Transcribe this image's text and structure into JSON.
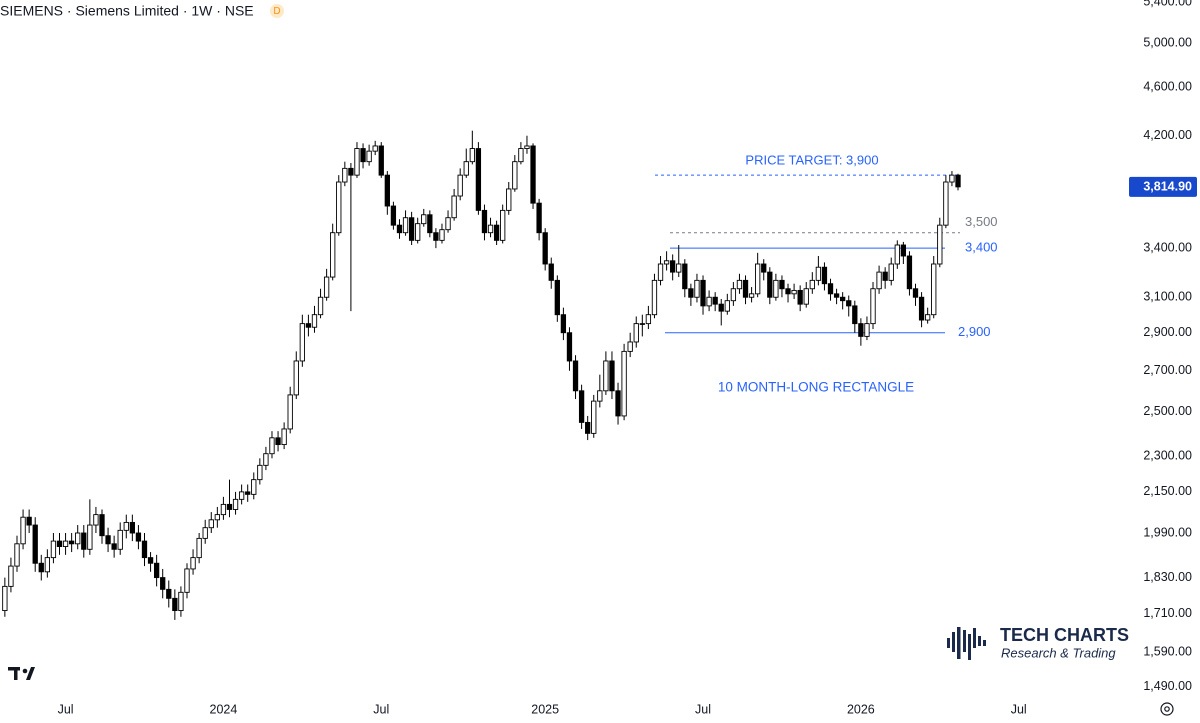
{
  "chart_data": {
    "type": "candlestick",
    "title": "SIEMENS · Siemens Limited · 1W · NSE",
    "badge": "D",
    "log_scale": true,
    "ylim": [
      1462,
      5421
    ],
    "yticks": [
      {
        "value": 1490,
        "label": "1,490.00"
      },
      {
        "value": 1590,
        "label": "1,590.00"
      },
      {
        "value": 1710,
        "label": "1,710.00"
      },
      {
        "value": 1830,
        "label": "1,830.00"
      },
      {
        "value": 1990,
        "label": "1,990.00"
      },
      {
        "value": 2150,
        "label": "2,150.00"
      },
      {
        "value": 2300,
        "label": "2,300.00"
      },
      {
        "value": 2500,
        "label": "2,500.00"
      },
      {
        "value": 2700,
        "label": "2,700.00"
      },
      {
        "value": 2900,
        "label": "2,900.00"
      },
      {
        "value": 3100,
        "label": "3,100.00"
      },
      {
        "value": 3400,
        "label": "3,400.00"
      },
      {
        "value": 4200,
        "label": "4,200.00"
      },
      {
        "value": 4600,
        "label": "4,600.00"
      },
      {
        "value": 5000,
        "label": "5,000.00"
      },
      {
        "value": 5400,
        "label": "5,400.00"
      }
    ],
    "xlim": [
      -0.8,
      185
    ],
    "xticks": [
      {
        "value": 10,
        "label": "Jul"
      },
      {
        "value": 36,
        "label": "2024"
      },
      {
        "value": 62,
        "label": "Jul"
      },
      {
        "value": 89,
        "label": "2025"
      },
      {
        "value": 115,
        "label": "Jul"
      },
      {
        "value": 141,
        "label": "2026"
      },
      {
        "value": 167,
        "label": "Jul"
      }
    ],
    "up_color": "#ffffff",
    "down_color": "#000000",
    "open": [
      1720,
      1800,
      1870,
      1950,
      2050,
      2020,
      1880,
      1850,
      1900,
      1960,
      1940,
      1960,
      1950,
      1990,
      1930,
      2020,
      2060,
      1980,
      1950,
      1930,
      2000,
      2030,
      1990,
      1960,
      1900,
      1880,
      1830,
      1790,
      1760,
      1720,
      1780,
      1860,
      1900,
      1970,
      2010,
      2040,
      2060,
      2100,
      2080,
      2120,
      2150,
      2140,
      2200,
      2260,
      2310,
      2380,
      2350,
      2420,
      2580,
      2750,
      2950,
      2930,
      3000,
      3100,
      3220,
      3500,
      3850,
      3950,
      3900,
      4100,
      4000,
      4080,
      4120,
      3900,
      3680,
      3550,
      3500,
      3600,
      3450,
      3560,
      3620,
      3500,
      3450,
      3520,
      3600,
      3750,
      3900,
      4000,
      4100,
      3650,
      3500,
      3550,
      3450,
      3650,
      3800,
      4000,
      4100,
      4120,
      3700,
      3500,
      3300,
      3200,
      3000,
      2900,
      2750,
      2600,
      2450,
      2400,
      2550,
      2600,
      2750,
      2600,
      2480,
      2800,
      2850,
      2950,
      2950,
      3000,
      3200,
      3300,
      3320,
      3250,
      3300,
      3150,
      3100,
      3200,
      3050,
      3100,
      3060,
      3020,
      3080,
      3150,
      3200,
      3100,
      3120,
      3300,
      3250,
      3100,
      3200,
      3150,
      3120,
      3140,
      3060,
      3150,
      3200,
      3280,
      3180,
      3120,
      3100,
      3080,
      3050,
      2950,
      2880,
      2950,
      3150,
      3250,
      3200,
      3300,
      3420,
      3350,
      3150,
      3100,
      2970,
      3000,
      3300,
      3550,
      3850,
      3900
    ],
    "high": [
      1830,
      1900,
      1980,
      2080,
      2080,
      2050,
      1910,
      1930,
      1990,
      1990,
      1990,
      1990,
      2020,
      2020,
      2120,
      2090,
      2080,
      2010,
      1980,
      2030,
      2060,
      2060,
      2020,
      1990,
      1920,
      1910,
      1860,
      1820,
      1790,
      1800,
      1880,
      1930,
      1990,
      2040,
      2070,
      2090,
      2130,
      2200,
      2150,
      2180,
      2180,
      2230,
      2290,
      2340,
      2410,
      2410,
      2450,
      2620,
      2800,
      3000,
      3000,
      3050,
      3150,
      3270,
      3560,
      3900,
      4000,
      3990,
      4150,
      4140,
      4130,
      4160,
      4150,
      3930,
      3710,
      3590,
      3650,
      3640,
      3600,
      3660,
      3650,
      3530,
      3560,
      3650,
      3800,
      3950,
      4100,
      4240,
      4150,
      3690,
      3600,
      3580,
      3690,
      3850,
      4050,
      4150,
      4200,
      4140,
      3730,
      3530,
      3340,
      3230,
      3040,
      2930,
      2780,
      2630,
      2480,
      2580,
      2680,
      2800,
      2800,
      2640,
      2840,
      2900,
      2990,
      3000,
      3050,
      3240,
      3350,
      3380,
      3360,
      3420,
      3330,
      3180,
      3240,
      3230,
      3140,
      3130,
      3090,
      3120,
      3190,
      3240,
      3230,
      3160,
      3370,
      3330,
      3280,
      3240,
      3230,
      3180,
      3180,
      3170,
      3190,
      3250,
      3350,
      3310,
      3210,
      3150,
      3130,
      3110,
      3080,
      2980,
      2990,
      3190,
      3290,
      3280,
      3340,
      3450,
      3440,
      3380,
      3180,
      3130,
      3040,
      3350,
      3600,
      3900,
      3930,
      3910
    ],
    "low": [
      1700,
      1780,
      1850,
      1930,
      1990,
      1850,
      1820,
      1830,
      1880,
      1910,
      1910,
      1920,
      1930,
      1900,
      1910,
      1990,
      1950,
      1920,
      1900,
      1910,
      1970,
      1960,
      1930,
      1870,
      1850,
      1800,
      1760,
      1730,
      1690,
      1700,
      1760,
      1840,
      1880,
      1950,
      1990,
      2010,
      2040,
      2050,
      2060,
      2100,
      2110,
      2120,
      2180,
      2240,
      2290,
      2320,
      2330,
      2400,
      2560,
      2720,
      2880,
      2900,
      2980,
      3080,
      3200,
      3480,
      3820,
      3020,
      3880,
      3950,
      3970,
      4050,
      3880,
      3620,
      3520,
      3460,
      3480,
      3420,
      3430,
      3540,
      3470,
      3400,
      3430,
      3500,
      3580,
      3720,
      3880,
      3980,
      3620,
      3450,
      3470,
      3420,
      3430,
      3620,
      3780,
      3980,
      4060,
      3660,
      3450,
      3260,
      3150,
      2960,
      2860,
      2700,
      2560,
      2420,
      2370,
      2380,
      2520,
      2580,
      2560,
      2440,
      2460,
      2770,
      2820,
      2880,
      2920,
      2980,
      3170,
      3260,
      3200,
      3220,
      3100,
      3050,
      3070,
      3000,
      3020,
      3020,
      2940,
      3000,
      3050,
      3120,
      3060,
      3070,
      3100,
      3200,
      3060,
      3080,
      3100,
      3070,
      3090,
      3020,
      3040,
      3120,
      3170,
      3140,
      3080,
      3060,
      3030,
      2990,
      2900,
      2830,
      2860,
      2920,
      3120,
      3150,
      3170,
      3270,
      3300,
      3110,
      3050,
      2930,
      2950,
      2980,
      3280,
      3530,
      3820,
      3790
    ],
    "close": [
      1800,
      1870,
      1950,
      2050,
      2020,
      1880,
      1850,
      1900,
      1960,
      1940,
      1960,
      1950,
      1990,
      1930,
      2020,
      2060,
      1980,
      1950,
      1930,
      2000,
      2030,
      1990,
      1960,
      1900,
      1880,
      1830,
      1790,
      1760,
      1720,
      1780,
      1860,
      1900,
      1970,
      2010,
      2040,
      2060,
      2100,
      2080,
      2120,
      2150,
      2140,
      2200,
      2260,
      2310,
      2380,
      2350,
      2420,
      2580,
      2750,
      2950,
      2930,
      3000,
      3100,
      3220,
      3500,
      3850,
      3950,
      3900,
      4100,
      4000,
      4080,
      4120,
      3900,
      3680,
      3550,
      3500,
      3600,
      3450,
      3560,
      3620,
      3500,
      3450,
      3520,
      3600,
      3750,
      3900,
      4000,
      4100,
      3650,
      3500,
      3550,
      3450,
      3650,
      3800,
      4000,
      4100,
      4120,
      3700,
      3500,
      3300,
      3200,
      3000,
      2900,
      2750,
      2600,
      2450,
      2400,
      2550,
      2600,
      2750,
      2600,
      2480,
      2800,
      2850,
      2950,
      2950,
      3000,
      3200,
      3300,
      3320,
      3250,
      3300,
      3150,
      3100,
      3200,
      3050,
      3100,
      3060,
      3020,
      3080,
      3150,
      3200,
      3100,
      3120,
      3300,
      3250,
      3100,
      3200,
      3150,
      3120,
      3140,
      3060,
      3150,
      3200,
      3280,
      3180,
      3120,
      3100,
      3080,
      3050,
      2950,
      2880,
      2950,
      3150,
      3250,
      3200,
      3300,
      3420,
      3350,
      3150,
      3100,
      2970,
      3000,
      3300,
      3550,
      3850,
      3900,
      3814.9
    ],
    "last_price": {
      "value": 3814.9,
      "label": "3,814.90",
      "color": "#1848cc"
    },
    "levels": [
      {
        "value": 3900,
        "label": "PRICE TARGET: 3,900",
        "style": "dashed",
        "color": "#2962ff"
      },
      {
        "value": 3500,
        "label": "3,500",
        "style": "dashed",
        "color": "#787b86"
      },
      {
        "value": 3400,
        "label": "3,400",
        "style": "solid",
        "color": "#2962ff"
      },
      {
        "value": 2900,
        "label": "2,900",
        "style": "solid",
        "color": "#2962ff"
      }
    ],
    "annotation": "10 MONTH-LONG RECTANGLE",
    "annotation_color": "#2962ff",
    "logo_title": "TECH CHARTS",
    "logo_subtitle": "Research & Trading"
  }
}
